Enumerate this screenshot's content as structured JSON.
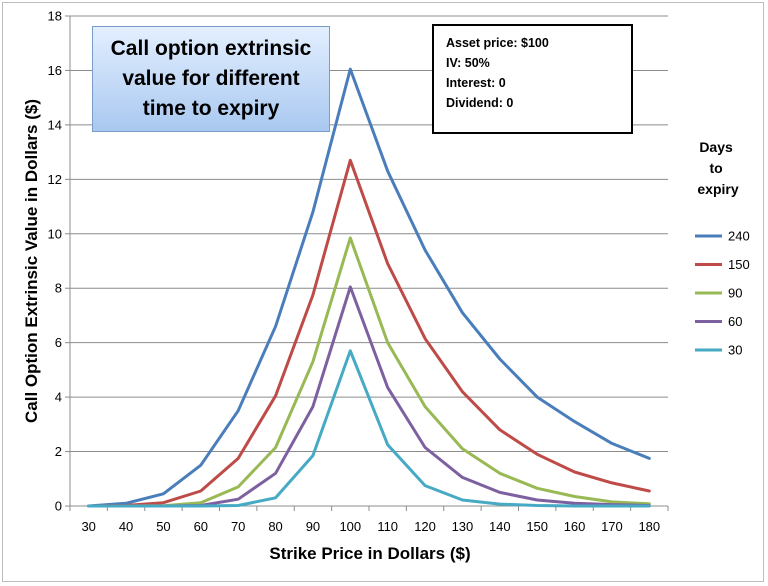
{
  "chart_data": {
    "type": "line",
    "title": "Call option extrinsic value for different time to expiry",
    "xlabel": "Strike Price in Dollars ($)",
    "ylabel": "Call Option Extrinsic Value in Dollars ($)",
    "x": [
      30,
      40,
      50,
      60,
      70,
      80,
      90,
      100,
      110,
      120,
      130,
      140,
      150,
      160,
      170,
      180
    ],
    "ylim": [
      0,
      18
    ],
    "yticks": [
      0,
      2,
      4,
      6,
      8,
      10,
      12,
      14,
      16,
      18
    ],
    "grid": "horizontal",
    "legend_title": "Days to expiry",
    "legend_position": "right",
    "series": [
      {
        "name": "240",
        "color": "#4a7ebb",
        "values": [
          0.0,
          0.1,
          0.45,
          1.5,
          3.5,
          6.6,
          10.8,
          16.05,
          12.3,
          9.4,
          7.1,
          5.4,
          4.0,
          3.1,
          2.3,
          1.75
        ]
      },
      {
        "name": "150",
        "color": "#be4b48",
        "values": [
          0.0,
          0.02,
          0.12,
          0.55,
          1.75,
          4.05,
          7.75,
          12.7,
          8.9,
          6.15,
          4.2,
          2.8,
          1.9,
          1.25,
          0.85,
          0.55
        ]
      },
      {
        "name": "90",
        "color": "#98b954",
        "values": [
          0.0,
          0.0,
          0.01,
          0.12,
          0.7,
          2.15,
          5.3,
          9.85,
          6.0,
          3.65,
          2.1,
          1.2,
          0.65,
          0.35,
          0.15,
          0.08
        ]
      },
      {
        "name": "60",
        "color": "#7d60a0",
        "values": [
          0.0,
          0.0,
          0.0,
          0.02,
          0.25,
          1.2,
          3.65,
          8.05,
          4.35,
          2.15,
          1.05,
          0.5,
          0.22,
          0.1,
          0.05,
          0.02
        ]
      },
      {
        "name": "30",
        "color": "#46aac5",
        "values": [
          0.0,
          0.0,
          0.0,
          0.0,
          0.02,
          0.3,
          1.85,
          5.7,
          2.25,
          0.75,
          0.22,
          0.07,
          0.02,
          0.0,
          0.0,
          0.0
        ]
      }
    ]
  },
  "info_box": {
    "lines": [
      "Asset price: $100",
      "IV: 50%",
      "Interest: 0",
      "Dividend: 0"
    ]
  }
}
